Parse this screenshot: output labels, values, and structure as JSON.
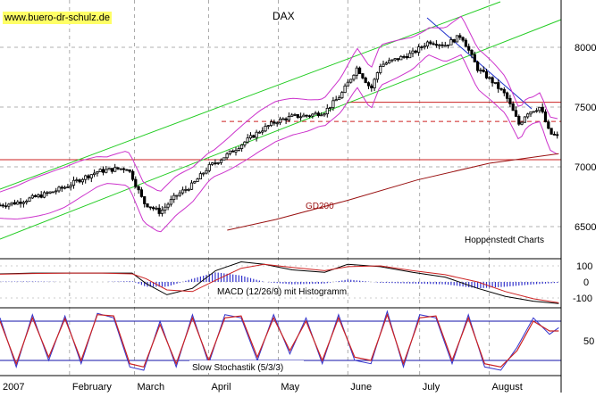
{
  "site_label": "www.buero-dr-schulz.de",
  "source_label": "Hoppenstedt Charts",
  "colors": {
    "price": "#000000",
    "bollinger": "#cc33cc",
    "channel": "#22cc22",
    "resistance": "#cc2222",
    "gd200": "#991111",
    "downtrend": "#2233cc",
    "macd_hist": "#3333cc",
    "stoch_k": "#3333cc",
    "stoch_d": "#cc2222",
    "stoch_levels": "#1111aa",
    "grid": "#999999"
  },
  "chart_data": [
    {
      "type": "line",
      "title": "DAX",
      "x_tick_labels": [
        "2007",
        "February",
        "March",
        "April",
        "May",
        "June",
        "July",
        "August"
      ],
      "y_tick_labels": [
        "6500",
        "7000",
        "7500",
        "8000"
      ],
      "ylim": [
        6400,
        8150
      ],
      "grid": true,
      "annotations": [
        "GD200"
      ],
      "series": [
        {
          "name": "DAX",
          "x": [
            "2007-01-02",
            "2007-01-09",
            "2007-01-16",
            "2007-01-23",
            "2007-01-30",
            "2007-02-06",
            "2007-02-13",
            "2007-02-20",
            "2007-02-26",
            "2007-02-28",
            "2007-03-05",
            "2007-03-12",
            "2007-03-19",
            "2007-03-26",
            "2007-04-02",
            "2007-04-10",
            "2007-04-17",
            "2007-04-24",
            "2007-05-01",
            "2007-05-08",
            "2007-05-15",
            "2007-05-22",
            "2007-05-29",
            "2007-06-05",
            "2007-06-11",
            "2007-06-15",
            "2007-06-22",
            "2007-06-29",
            "2007-07-06",
            "2007-07-13",
            "2007-07-20",
            "2007-07-27",
            "2007-08-02",
            "2007-08-08",
            "2007-08-14",
            "2007-08-17",
            "2007-08-23",
            "2007-08-27",
            "2007-08-31"
          ],
          "values": [
            6680,
            6700,
            6740,
            6780,
            6830,
            6900,
            6960,
            6980,
            6990,
            6920,
            6700,
            6620,
            6760,
            6850,
            7000,
            7100,
            7200,
            7300,
            7380,
            7420,
            7430,
            7460,
            7600,
            7830,
            7650,
            7850,
            7900,
            7950,
            8050,
            8020,
            8100,
            7820,
            7720,
            7600,
            7350,
            7450,
            7500,
            7280,
            7250
          ]
        },
        {
          "name": "GD200",
          "x": [
            "2007-04-10",
            "2007-05-01",
            "2007-06-01",
            "2007-07-01",
            "2007-08-01",
            "2007-08-31"
          ],
          "values": [
            6470,
            6560,
            6720,
            6890,
            7030,
            7110
          ]
        }
      ],
      "horizontal_levels": [
        7060,
        7540,
        7380
      ],
      "notes_on_lines": [
        "upper trend channel",
        "lower trend channel",
        "falling trend line"
      ]
    },
    {
      "type": "line",
      "title": "MACD (12/26/9) mit Histogramm",
      "y_tick_labels": [
        "100",
        "0",
        "-100"
      ],
      "ylim": [
        -180,
        180
      ],
      "x": [
        "2007-01-02",
        "2007-01-16",
        "2007-02-01",
        "2007-02-15",
        "2007-02-28",
        "2007-03-06",
        "2007-03-15",
        "2007-03-26",
        "2007-04-05",
        "2007-04-16",
        "2007-04-26",
        "2007-05-08",
        "2007-05-22",
        "2007-06-01",
        "2007-06-15",
        "2007-06-29",
        "2007-07-13",
        "2007-07-27",
        "2007-08-08",
        "2007-08-20",
        "2007-08-31"
      ],
      "series": [
        {
          "name": "MACD",
          "values": [
            50,
            55,
            55,
            55,
            55,
            -10,
            -80,
            -40,
            70,
            125,
            110,
            75,
            60,
            110,
            95,
            60,
            30,
            -40,
            -90,
            -120,
            -135
          ]
        },
        {
          "name": "Signal",
          "values": [
            48,
            52,
            55,
            55,
            50,
            20,
            -50,
            -60,
            10,
            85,
            110,
            90,
            70,
            95,
            100,
            70,
            45,
            0,
            -60,
            -105,
            -130
          ]
        },
        {
          "name": "Histogramm",
          "values": [
            2,
            3,
            0,
            0,
            5,
            -30,
            -30,
            20,
            60,
            40,
            0,
            -15,
            -10,
            15,
            -5,
            -10,
            -15,
            -40,
            -30,
            -15,
            -5
          ]
        }
      ]
    },
    {
      "type": "line",
      "title": "Slow Stochastik (5/3/3)",
      "y_tick_labels": [
        "50"
      ],
      "ylim": [
        -10,
        110
      ],
      "levels": [
        80,
        20
      ],
      "x": [
        "2007-01-02",
        "2007-01-09",
        "2007-01-16",
        "2007-01-23",
        "2007-01-30",
        "2007-02-06",
        "2007-02-13",
        "2007-02-20",
        "2007-02-27",
        "2007-03-05",
        "2007-03-12",
        "2007-03-19",
        "2007-03-26",
        "2007-04-02",
        "2007-04-09",
        "2007-04-16",
        "2007-04-23",
        "2007-04-30",
        "2007-05-07",
        "2007-05-14",
        "2007-05-21",
        "2007-05-28",
        "2007-06-04",
        "2007-06-11",
        "2007-06-18",
        "2007-06-25",
        "2007-07-02",
        "2007-07-09",
        "2007-07-16",
        "2007-07-23",
        "2007-07-30",
        "2007-08-06",
        "2007-08-13",
        "2007-08-20",
        "2007-08-27",
        "2007-08-31"
      ],
      "series": [
        {
          "name": "%K",
          "values": [
            85,
            10,
            90,
            20,
            88,
            15,
            92,
            85,
            10,
            5,
            80,
            10,
            90,
            15,
            90,
            85,
            20,
            90,
            30,
            85,
            15,
            90,
            20,
            15,
            95,
            10,
            90,
            85,
            15,
            90,
            10,
            5,
            40,
            85,
            60,
            70
          ]
        },
        {
          "name": "%D",
          "values": [
            80,
            15,
            85,
            25,
            84,
            20,
            90,
            88,
            15,
            10,
            75,
            15,
            85,
            20,
            85,
            88,
            25,
            85,
            35,
            80,
            20,
            85,
            25,
            20,
            90,
            15,
            85,
            88,
            20,
            85,
            15,
            10,
            35,
            80,
            65,
            65
          ]
        }
      ]
    }
  ]
}
